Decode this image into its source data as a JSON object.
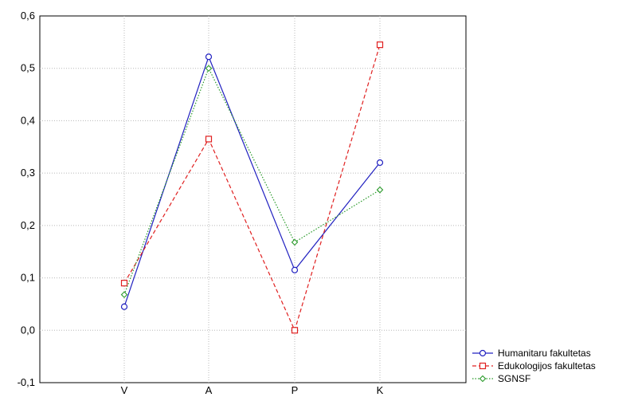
{
  "chart_data": {
    "type": "line",
    "categories": [
      "V",
      "A",
      "P",
      "K"
    ],
    "ylim": [
      -0.1,
      0.6
    ],
    "yticks": [
      "-0,1",
      "0,0",
      "0,1",
      "0,2",
      "0,3",
      "0,4",
      "0,5",
      "0,6"
    ],
    "ytick_values": [
      -0.1,
      0.0,
      0.1,
      0.2,
      0.3,
      0.4,
      0.5,
      0.6
    ],
    "grid": true,
    "legend_position": "bottom-right outside plot",
    "series": [
      {
        "name": "Humanitaru fakultetas",
        "values": [
          0.045,
          0.522,
          0.115,
          0.32
        ],
        "color": "#2020c0",
        "marker": "circle",
        "line": "solid"
      },
      {
        "name": "Edukologijos fakultetas",
        "values": [
          0.09,
          0.365,
          0.0,
          0.545
        ],
        "color": "#e02020",
        "marker": "square",
        "line": "dashed"
      },
      {
        "name": "SGNSF",
        "values": [
          0.068,
          0.5,
          0.168,
          0.268
        ],
        "color": "#2a9a2a",
        "marker": "diamond",
        "line": "dotted"
      }
    ]
  }
}
